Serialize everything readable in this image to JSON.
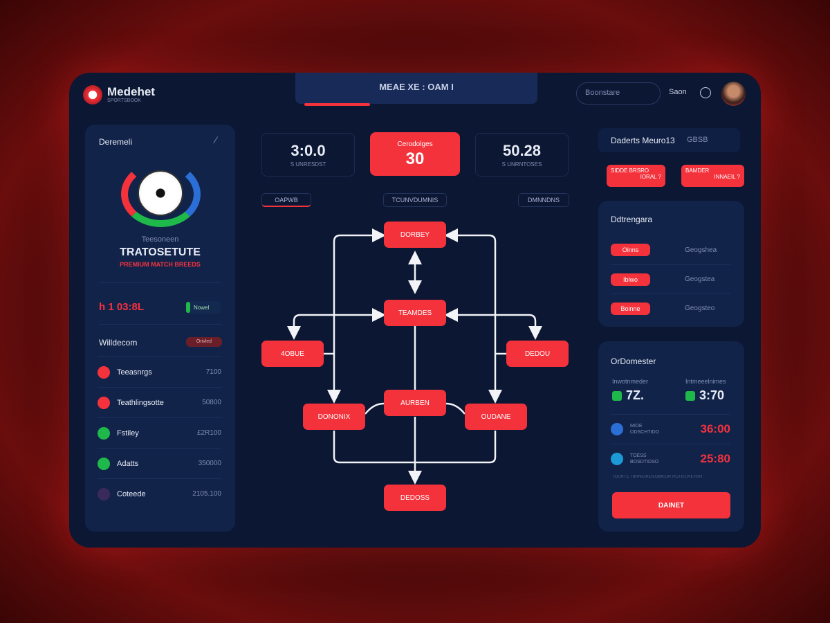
{
  "header": {
    "logo_text": "Medehet",
    "logo_sub": "SPORTSBOOK",
    "center_title": "MEAE XE : OAM I",
    "search_placeholder": "Boonstare",
    "sign_in": "Saon"
  },
  "left": {
    "title": "Deremeli",
    "team_subtitle": "Teesoneen",
    "team_name": "TRATOSETUTE",
    "team_tagline": "PREMIUM MATCH BREEDS",
    "score": "h 1 03:8L",
    "status_label": "Nowel",
    "section_title": "Willdecom",
    "section_badge": "Orivled",
    "items": [
      {
        "label": "Teeasnrgs",
        "value": "7100",
        "color": "#f4323c"
      },
      {
        "label": "Teathlingsotte",
        "value": "50800",
        "color": "#f4323c"
      },
      {
        "label": "Fstiley",
        "value": "£2R100",
        "color": "#1fb84a"
      },
      {
        "label": "Adatts",
        "value": "350000",
        "color": "#1fb84a"
      },
      {
        "label": "Coteede",
        "value": "2105.100",
        "color": "#3a2a5a"
      }
    ]
  },
  "center": {
    "stats": [
      {
        "value": "3:0.0",
        "label": "S UNRESDST"
      },
      {
        "value": "30",
        "label": "Cerodolges"
      },
      {
        "value": "50.28",
        "label": "S UNRNTOSES"
      }
    ],
    "tabs": [
      "OAPWB",
      "TCUNVDUMNIS",
      "DMNNDNS"
    ],
    "nodes": [
      "DORBEY",
      "TEAMDES",
      "4OBUE",
      "DEDOU",
      "DONONIX",
      "AURBEN",
      "OUDANE",
      "DEDOSS"
    ]
  },
  "right": {
    "title": "Daderts Meuro13",
    "title_extra": "GBSB",
    "pills": [
      {
        "top": "SIDDE BRSRO",
        "bottom": "IORAL ?"
      },
      {
        "top": "BAMDER",
        "bottom": "INNAEIL ?"
      }
    ],
    "categories_title": "Ddtrengara",
    "categories": [
      {
        "badge": "Oinns",
        "value": "Geogshea"
      },
      {
        "badge": "Ibiwo",
        "value": "Geogstea"
      },
      {
        "badge": "Boinne",
        "value": "Geogsteo"
      }
    ],
    "odds_title": "OrDomester",
    "odds": [
      {
        "label": "Inwotnmeder",
        "value": "7Z."
      },
      {
        "label": "Intmeeelnimes",
        "value": "3:70"
      }
    ],
    "times": [
      {
        "small": "MIDE",
        "label": "ODSCHTIDO",
        "value": "36:00",
        "color": "#2b6fd6"
      },
      {
        "small": "TOESS",
        "label": "BOSDTIDSO",
        "value": "25:80",
        "color": "#1c9ad6"
      }
    ],
    "footnote": "TOURTE TBRNCIRCILOWEOR ROTIEUVEHSH",
    "action": "DAINET"
  },
  "colors": {
    "accent": "#f4323c",
    "success": "#1fb84a",
    "panel": "#12234a",
    "bg": "#0b1733"
  }
}
